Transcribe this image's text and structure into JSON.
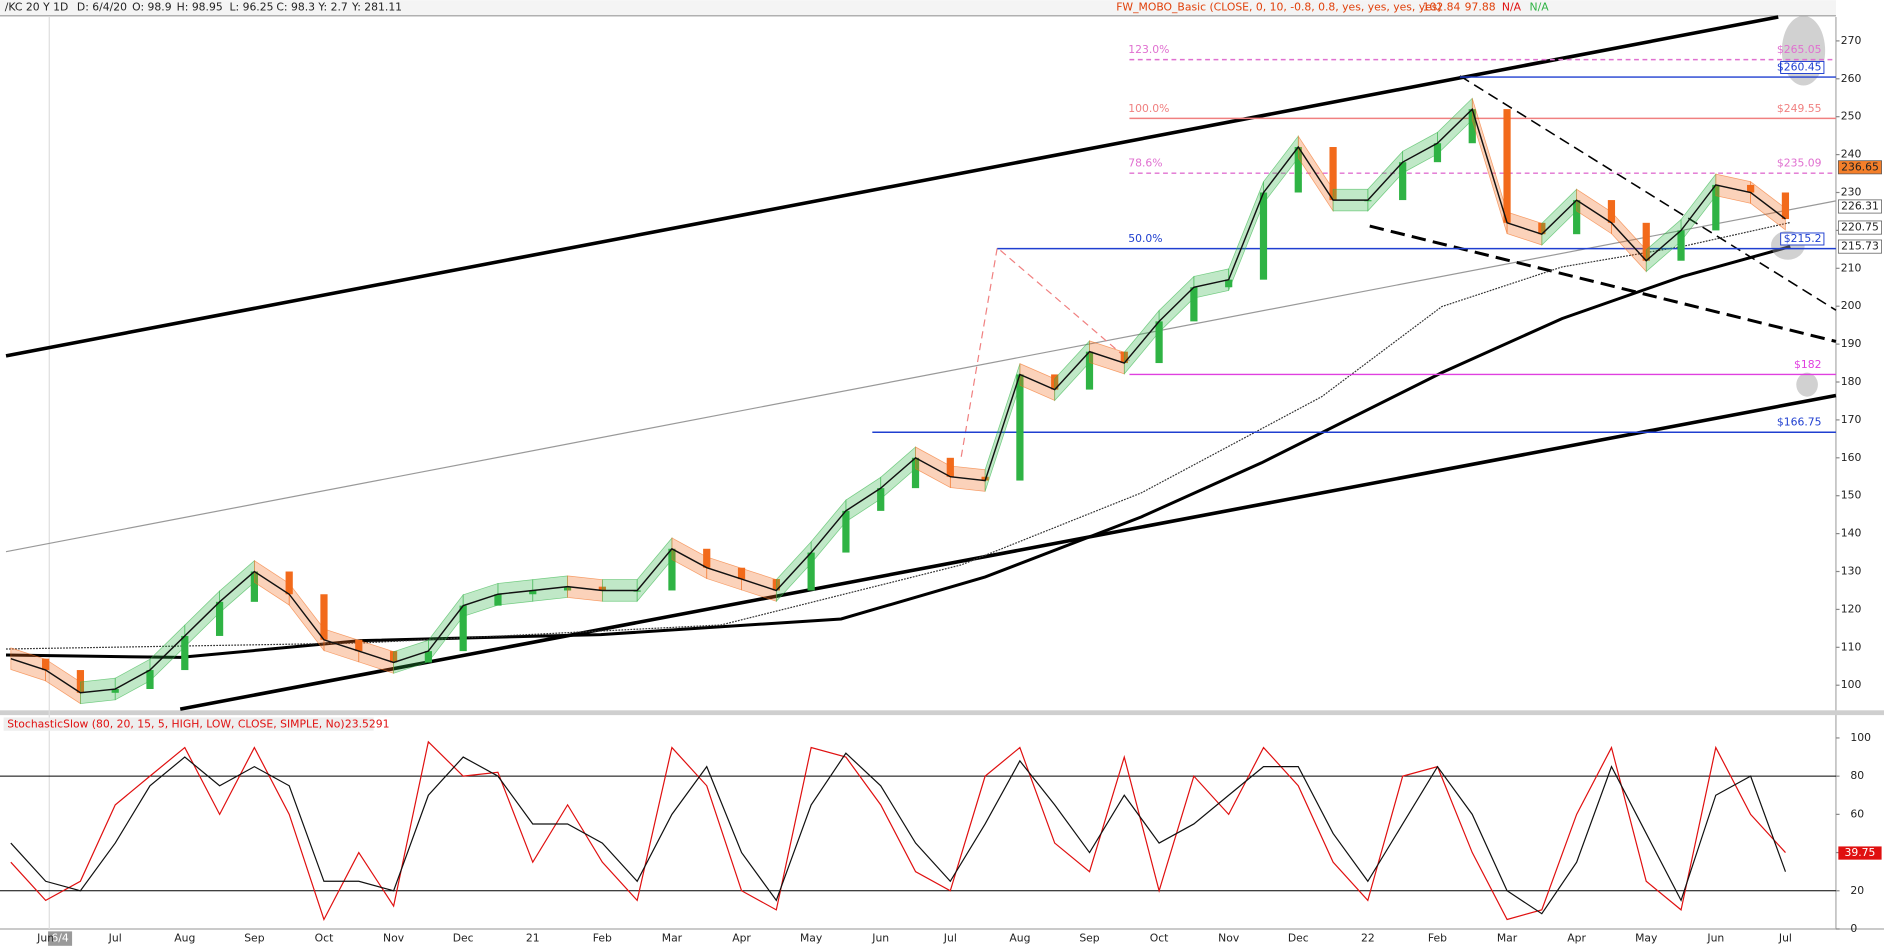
{
  "header": {
    "symbol": "/KC 20 Y 1D",
    "date": "D: 6/4/20",
    "open": "O: 98.9",
    "high": "H: 98.95",
    "low": "L: 96.25",
    "close": "C: 98.3",
    "y1": "Y: 2.7",
    "y2": "Y: 281.11",
    "study": "FW_MOBO_Basic (CLOSE, 0, 10, -0.8, 0.8, yes, yes, yes, yes)",
    "study_values": [
      "102.84",
      "97.88",
      "N/A",
      "N/A"
    ]
  },
  "cursor_label": "6/4",
  "chart_data": [
    {
      "type": "line",
      "categories": [
        null,
        "Jun",
        null,
        "Jul",
        null,
        "Aug",
        null,
        "Sep",
        null,
        "Oct",
        null,
        "Nov",
        null,
        "Dec",
        null,
        "21",
        null,
        "Feb",
        null,
        "Mar",
        null,
        "Apr",
        null,
        "May",
        null,
        "Jun",
        null,
        "Jul",
        null,
        "Aug",
        null,
        "Sep",
        null,
        "Oct",
        null,
        "Nov",
        null,
        "Dec",
        null,
        "22",
        null,
        "Feb",
        null,
        "Mar",
        null,
        "Apr",
        null,
        "May",
        null,
        "Jun",
        null,
        "Jul"
      ],
      "values": [
        107,
        104,
        98,
        99,
        104,
        113,
        122,
        130,
        124,
        112,
        109,
        106,
        109,
        121,
        124,
        125,
        126,
        125,
        125,
        136,
        131,
        128,
        125,
        135,
        146,
        152,
        160,
        155,
        154,
        182,
        178,
        188,
        185,
        196,
        205,
        207,
        230,
        242,
        228,
        228,
        238,
        243,
        252,
        222,
        219,
        228,
        222,
        212,
        220,
        232,
        230,
        223
      ],
      "color": "#111111",
      "up_color": "#2fb344",
      "down_color": "#f26a1b",
      "ylim": [
        93.7,
        276.3
      ],
      "yticks": [
        100,
        110,
        120,
        130,
        140,
        150,
        160,
        170,
        180,
        190,
        200,
        210,
        220,
        230,
        240,
        250,
        260,
        270
      ],
      "levels": [
        {
          "value": 265.05,
          "label": "$265.05",
          "color": "#e070d0",
          "dashed": true,
          "boxed": false
        },
        {
          "value": 260.45,
          "label": "$260.45",
          "color": "#1f3fd0",
          "dashed": false,
          "boxed": true
        },
        {
          "value": 249.55,
          "label": "$249.55",
          "color": "#f08080",
          "dashed": false,
          "boxed": false
        },
        {
          "value": 235.09,
          "label": "$235.09",
          "color": "#e070d0",
          "dashed": true,
          "boxed": false
        },
        {
          "value": 215.2,
          "label": "$215.2",
          "color": "#1f3fd0",
          "dashed": false,
          "boxed": true
        },
        {
          "value": 182,
          "label": "$182",
          "color": "#e040e0",
          "dashed": false,
          "boxed": false
        },
        {
          "value": 166.75,
          "label": "$166.75",
          "color": "#1f3fd0",
          "dashed": false,
          "boxed": false
        }
      ],
      "fib_labels": [
        "123.0%",
        "100.0%",
        "78.6%",
        "50.0%"
      ],
      "price_badges": [
        236.65,
        226.31,
        220.75,
        215.73
      ]
    },
    {
      "type": "line",
      "title": "StochasticSlow (80, 20, 15, 5, HIGH, LOW, CLOSE, SIMPLE, No)",
      "title_value": "23.5291",
      "series": [
        {
          "color": "#e01010",
          "values": [
            35,
            15,
            25,
            65,
            80,
            95,
            60,
            95,
            60,
            5,
            40,
            12,
            98,
            80,
            82,
            35,
            65,
            35,
            15,
            95,
            75,
            20,
            10,
            95,
            90,
            65,
            30,
            20,
            80,
            95,
            45,
            30,
            90,
            20,
            80,
            60,
            95,
            75,
            35,
            15,
            80,
            85,
            40,
            5,
            10,
            60,
            95,
            25,
            10,
            95,
            60,
            40
          ]
        },
        {
          "color": "#111111",
          "values": [
            45,
            25,
            20,
            45,
            75,
            90,
            75,
            85,
            75,
            25,
            25,
            20,
            70,
            90,
            80,
            55,
            55,
            45,
            25,
            60,
            85,
            40,
            15,
            65,
            92,
            75,
            45,
            25,
            55,
            88,
            65,
            40,
            70,
            45,
            55,
            70,
            85,
            85,
            50,
            25,
            55,
            85,
            60,
            20,
            8,
            35,
            85,
            50,
            15,
            70,
            80,
            30
          ]
        }
      ],
      "ylim": [
        0,
        110.7
      ],
      "yticks": [
        0,
        20,
        40,
        60,
        80,
        100
      ],
      "levels": [
        20,
        80
      ],
      "last_badge": 39.75
    }
  ]
}
